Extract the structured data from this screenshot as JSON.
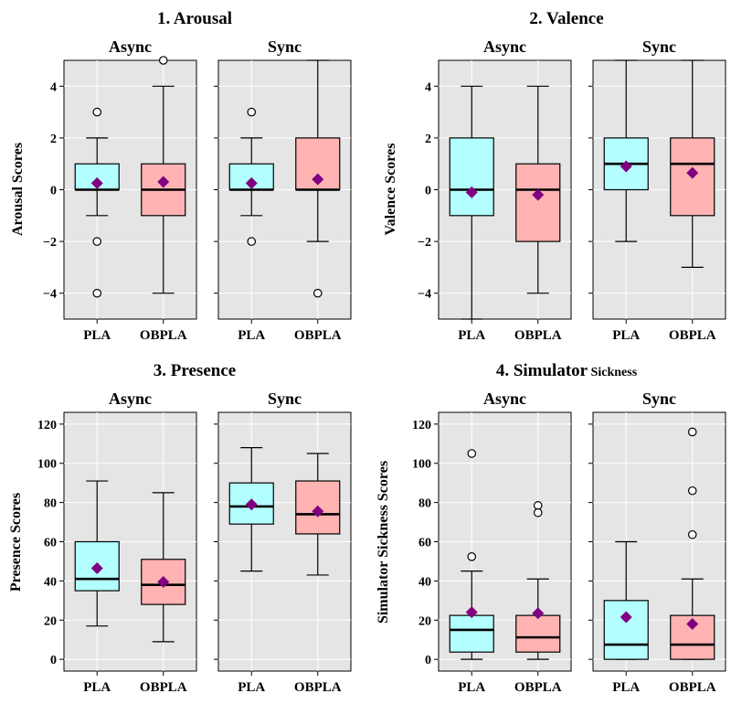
{
  "colors": {
    "background": "#e5e5e5",
    "grid": "#ffffff",
    "pla": "#b3ffff",
    "obpla": "#ffb3b3",
    "median": "#000000",
    "mean": "#800080"
  },
  "chart_data": [
    {
      "type": "box",
      "title": "1. Arousal",
      "ylabel": "Arousal Scores",
      "ylim": [
        -5,
        5
      ],
      "yticks": [
        -4,
        -2,
        0,
        2,
        4
      ],
      "ytick_labels": [
        "−4",
        "−2",
        "0",
        "2",
        "4"
      ],
      "grid": true,
      "categories": [
        "PLA",
        "OBPLA"
      ],
      "panels": [
        {
          "title": "Async",
          "boxes": [
            {
              "category": "PLA",
              "q1": 0,
              "median": 0,
              "q3": 1,
              "whisker_low": -1,
              "whisker_high": 2,
              "mean": 0.25,
              "outliers": [
                3,
                -2,
                -4
              ]
            },
            {
              "category": "OBPLA",
              "q1": -1,
              "median": 0,
              "q3": 1,
              "whisker_low": -4,
              "whisker_high": 4,
              "mean": 0.3,
              "outliers": [
                5
              ]
            }
          ]
        },
        {
          "title": "Sync",
          "boxes": [
            {
              "category": "PLA",
              "q1": 0,
              "median": 0,
              "q3": 1,
              "whisker_low": -1,
              "whisker_high": 2,
              "mean": 0.25,
              "outliers": [
                3,
                -2
              ]
            },
            {
              "category": "OBPLA",
              "q1": 0,
              "median": 0,
              "q3": 2,
              "whisker_low": -2,
              "whisker_high": 5,
              "mean": 0.4,
              "outliers": [
                -4
              ]
            }
          ]
        }
      ]
    },
    {
      "type": "box",
      "title": "2. Valence",
      "ylabel": "Valence Scores",
      "ylim": [
        -5,
        5
      ],
      "yticks": [
        -4,
        -2,
        0,
        2,
        4
      ],
      "ytick_labels": [
        "−4",
        "−2",
        "0",
        "2",
        "4"
      ],
      "grid": true,
      "categories": [
        "PLA",
        "OBPLA"
      ],
      "panels": [
        {
          "title": "Async",
          "boxes": [
            {
              "category": "PLA",
              "q1": -1,
              "median": 0,
              "q3": 2,
              "whisker_low": -5,
              "whisker_high": 4,
              "mean": -0.1,
              "outliers": []
            },
            {
              "category": "OBPLA",
              "q1": -2,
              "median": 0,
              "q3": 1,
              "whisker_low": -4,
              "whisker_high": 4,
              "mean": -0.2,
              "outliers": []
            }
          ]
        },
        {
          "title": "Sync",
          "boxes": [
            {
              "category": "PLA",
              "q1": 0,
              "median": 1,
              "q3": 2,
              "whisker_low": -2,
              "whisker_high": 5,
              "mean": 0.9,
              "outliers": []
            },
            {
              "category": "OBPLA",
              "q1": -1,
              "median": 1,
              "q3": 2,
              "whisker_low": -3,
              "whisker_high": 5,
              "mean": 0.65,
              "outliers": []
            }
          ]
        }
      ]
    },
    {
      "type": "box",
      "title": "3. Presence",
      "ylabel": "Presence Scores",
      "ylim": [
        -6,
        126
      ],
      "yticks": [
        0,
        20,
        40,
        60,
        80,
        100,
        120
      ],
      "ytick_labels": [
        "0",
        "20",
        "40",
        "60",
        "80",
        "100",
        "120"
      ],
      "grid": true,
      "categories": [
        "PLA",
        "OBPLA"
      ],
      "panels": [
        {
          "title": "Async",
          "boxes": [
            {
              "category": "PLA",
              "q1": 35,
              "median": 41,
              "q3": 60,
              "whisker_low": 17,
              "whisker_high": 91,
              "mean": 46.5,
              "outliers": []
            },
            {
              "category": "OBPLA",
              "q1": 28,
              "median": 38,
              "q3": 51,
              "whisker_low": 9,
              "whisker_high": 85,
              "mean": 39.5,
              "outliers": []
            }
          ]
        },
        {
          "title": "Sync",
          "boxes": [
            {
              "category": "PLA",
              "q1": 69,
              "median": 78,
              "q3": 90,
              "whisker_low": 45,
              "whisker_high": 108,
              "mean": 79,
              "outliers": []
            },
            {
              "category": "OBPLA",
              "q1": 64,
              "median": 74,
              "q3": 91,
              "whisker_low": 43,
              "whisker_high": 105,
              "mean": 75.5,
              "outliers": []
            }
          ]
        }
      ]
    },
    {
      "type": "box",
      "title": "4. Simulator",
      "title_suffix": "Sickness",
      "ylabel": "Simulator Sickness Scores",
      "ylim": [
        -6,
        126
      ],
      "yticks": [
        0,
        20,
        40,
        60,
        80,
        100,
        120
      ],
      "ytick_labels": [
        "0",
        "20",
        "40",
        "60",
        "80",
        "100",
        "120"
      ],
      "grid": true,
      "categories": [
        "PLA",
        "OBPLA"
      ],
      "panels": [
        {
          "title": "Async",
          "boxes": [
            {
              "category": "PLA",
              "q1": 3.7,
              "median": 15,
              "q3": 22.4,
              "whisker_low": 0,
              "whisker_high": 45,
              "mean": 24,
              "outliers": [
                105,
                52.4
              ]
            },
            {
              "category": "OBPLA",
              "q1": 3.7,
              "median": 11.2,
              "q3": 22.4,
              "whisker_low": 0,
              "whisker_high": 41,
              "mean": 23.5,
              "outliers": [
                78.5,
                74.8
              ]
            }
          ]
        },
        {
          "title": "Sync",
          "boxes": [
            {
              "category": "PLA",
              "q1": 0,
              "median": 7.5,
              "q3": 30,
              "whisker_low": 0,
              "whisker_high": 60,
              "mean": 21.5,
              "outliers": []
            },
            {
              "category": "OBPLA",
              "q1": 0,
              "median": 7.5,
              "q3": 22.4,
              "whisker_low": 0,
              "whisker_high": 41,
              "mean": 18,
              "outliers": [
                116,
                86,
                63.6
              ]
            }
          ]
        }
      ]
    }
  ]
}
